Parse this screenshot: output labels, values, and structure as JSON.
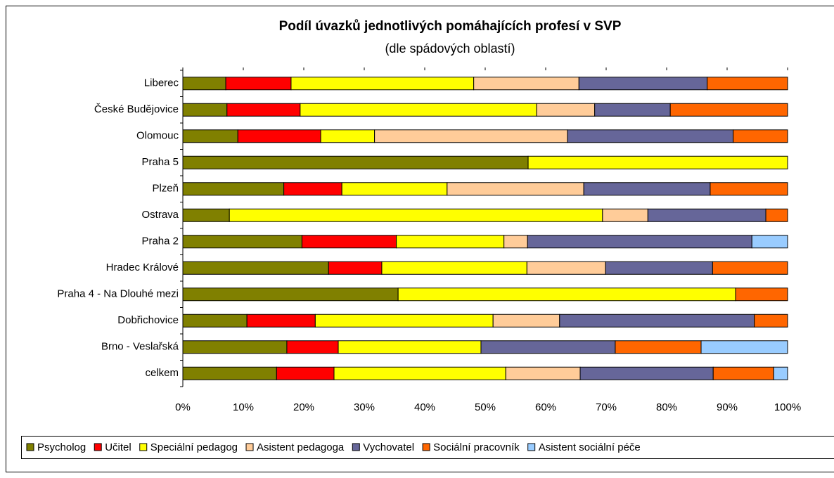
{
  "chart_data": {
    "type": "bar",
    "orientation": "horizontal",
    "stacked": true,
    "title": "Podíl úvazků jednotlivých pomáhajících profesí v SVP",
    "subtitle": "(dle spádových oblastí)",
    "categories": [
      "Liberec",
      "České Budějovice",
      "Olomouc",
      "Praha 5",
      "Plzeň",
      "Ostrava",
      "Praha 2",
      "Hradec Králové",
      "Praha 4 - Na Dlouhé mezi",
      "Dobřichovice",
      "Brno - Veslařská",
      "celkem"
    ],
    "series": [
      {
        "name": "Psycholog",
        "color": "#808000",
        "values": [
          7.1,
          7.3,
          9.1,
          57.1,
          16.7,
          7.7,
          19.7,
          24.1,
          35.6,
          10.6,
          17.2,
          15.5
        ]
      },
      {
        "name": "Učitel",
        "color": "#ff0000",
        "values": [
          10.8,
          12.1,
          13.7,
          0,
          9.6,
          0,
          15.6,
          8.8,
          0,
          11.3,
          8.5,
          9.5
        ]
      },
      {
        "name": "Speciální pedagog",
        "color": "#ffff00",
        "values": [
          30.2,
          39.1,
          8.9,
          42.9,
          17.4,
          61.7,
          17.8,
          24.0,
          55.8,
          29.4,
          23.6,
          28.4
        ]
      },
      {
        "name": "Asistent pedagoga",
        "color": "#ffcc99",
        "values": [
          17.4,
          9.6,
          31.9,
          0,
          22.6,
          7.5,
          3.9,
          13.0,
          0,
          11.0,
          0,
          12.3
        ]
      },
      {
        "name": "Vychovatel",
        "color": "#666699",
        "values": [
          21.2,
          12.5,
          27.4,
          0,
          20.9,
          19.5,
          37.1,
          17.7,
          0,
          32.2,
          22.2,
          22.0
        ]
      },
      {
        "name": "Sociální pracovník",
        "color": "#ff6600",
        "values": [
          13.3,
          19.4,
          9.0,
          0,
          12.8,
          3.6,
          0,
          12.4,
          8.6,
          5.5,
          14.2,
          10.0
        ]
      },
      {
        "name": "Asistent sociální péče",
        "color": "#99ccff",
        "values": [
          0,
          0,
          0,
          0,
          0,
          0,
          5.9,
          0,
          0,
          0,
          14.3,
          2.3
        ]
      }
    ],
    "xlim": [
      0,
      100
    ],
    "xticks": [
      {
        "value": 0,
        "label": "0%"
      },
      {
        "value": 10,
        "label": "10%"
      },
      {
        "value": 20,
        "label": "20%"
      },
      {
        "value": 30,
        "label": "30%"
      },
      {
        "value": 40,
        "label": "40%"
      },
      {
        "value": 50,
        "label": "50%"
      },
      {
        "value": 60,
        "label": "60%"
      },
      {
        "value": 70,
        "label": "70%"
      },
      {
        "value": 80,
        "label": "80%"
      },
      {
        "value": 90,
        "label": "90%"
      },
      {
        "value": 100,
        "label": "100%"
      }
    ],
    "legend": "bottom"
  }
}
